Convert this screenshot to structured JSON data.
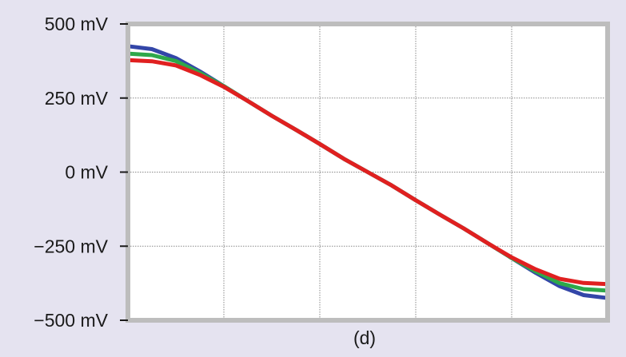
{
  "chart_data": {
    "type": "line",
    "title": "",
    "xlabel": "",
    "ylabel": "",
    "caption": "(d)",
    "ylim": [
      -500,
      500
    ],
    "xlim": [
      0,
      1
    ],
    "x_gridlines": [
      0.2,
      0.4,
      0.6,
      0.8
    ],
    "ytick_values": [
      500,
      250,
      0,
      -250,
      -500
    ],
    "ytick_labels": [
      "500 mV",
      "250 mV",
      "0 mV",
      "−250 mV",
      "−500 mV"
    ],
    "grid": true,
    "series": [
      {
        "color": "#3346a8",
        "x": [
          0,
          0.05,
          0.1,
          0.15,
          0.2,
          0.25,
          0.3,
          0.35,
          0.4,
          0.45,
          0.5,
          0.55,
          0.6,
          0.65,
          0.7,
          0.75,
          0.8,
          0.85,
          0.9,
          0.95,
          1.0
        ],
        "y": [
          425,
          415,
          385,
          340,
          290,
          240,
          190,
          143,
          95,
          45,
          0,
          -45,
          -95,
          -143,
          -190,
          -240,
          -290,
          -340,
          -385,
          -415,
          -425
        ]
      },
      {
        "color": "#2ea84a",
        "x": [
          0,
          0.05,
          0.1,
          0.15,
          0.2,
          0.25,
          0.3,
          0.35,
          0.4,
          0.45,
          0.5,
          0.55,
          0.6,
          0.65,
          0.7,
          0.75,
          0.8,
          0.85,
          0.9,
          0.95,
          1.0
        ],
        "y": [
          400,
          395,
          375,
          335,
          290,
          240,
          190,
          143,
          95,
          45,
          0,
          -45,
          -95,
          -143,
          -190,
          -240,
          -290,
          -335,
          -375,
          -395,
          -400
        ]
      },
      {
        "color": "#e02020",
        "x": [
          0,
          0.05,
          0.1,
          0.15,
          0.2,
          0.25,
          0.3,
          0.35,
          0.4,
          0.45,
          0.5,
          0.55,
          0.6,
          0.65,
          0.7,
          0.75,
          0.8,
          0.85,
          0.9,
          0.95,
          1.0
        ],
        "y": [
          378,
          374,
          360,
          328,
          288,
          240,
          190,
          143,
          95,
          45,
          0,
          -45,
          -95,
          -143,
          -190,
          -240,
          -288,
          -328,
          -360,
          -374,
          -378
        ]
      }
    ],
    "colors": {
      "background": "#e5e3f0",
      "plot_background": "#ffffff",
      "frame": "#bdbdbd",
      "grid": "#8a8a8a"
    }
  }
}
